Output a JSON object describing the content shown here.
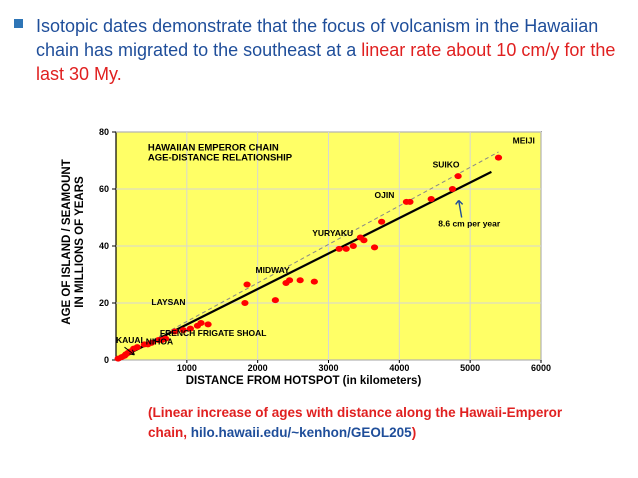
{
  "bullet": {
    "part1": "Isotopic dates demonstrate that the focus of volcanism in  the Hawaiian chain has migrated to the southeast at a ",
    "part2": "linear rate about 10 cm/y for the last 30 My."
  },
  "caption": {
    "part1": "(Linear increase of ages with distance along the Hawaii-Emperor chain, ",
    "part2": "hilo.hawaii.edu/~kenhon/GEOL205",
    "part3": ")"
  },
  "chart_data": {
    "type": "scatter",
    "title_lines": [
      "HAWAIIAN EMPEROR CHAIN",
      "AGE-DISTANCE RELATIONSHIP"
    ],
    "xlabel": "DISTANCE  FROM  HOTSPOT  (in kilometers)",
    "ylabel_lines": [
      "AGE OF ISLAND / SEAMOUNT",
      "IN MILLIONS OF YEARS"
    ],
    "xlim": [
      0,
      6000
    ],
    "ylim": [
      0,
      80
    ],
    "xticks": [
      1000,
      2000,
      3000,
      4000,
      5000,
      6000
    ],
    "yticks": [
      0,
      20,
      40,
      60,
      80
    ],
    "colors": {
      "background": "#ffff66",
      "points": "#ff0000",
      "fit_line": "#000000",
      "rate_label": "#1f4e9a"
    },
    "points": [
      [
        30,
        0.5
      ],
      [
        80,
        1
      ],
      [
        120,
        1.5
      ],
      [
        140,
        2
      ],
      [
        170,
        2.5
      ],
      [
        200,
        3
      ],
      [
        250,
        4
      ],
      [
        300,
        4.5
      ],
      [
        400,
        5.5
      ],
      [
        450,
        5.5
      ],
      [
        500,
        6
      ],
      [
        600,
        7
      ],
      [
        650,
        7
      ],
      [
        700,
        7.5
      ],
      [
        830,
        10
      ],
      [
        950,
        10.5
      ],
      [
        1050,
        11
      ],
      [
        1150,
        12
      ],
      [
        1200,
        13
      ],
      [
        1300,
        12.5
      ],
      [
        1820,
        20
      ],
      [
        1850,
        26.5
      ],
      [
        2250,
        21
      ],
      [
        2400,
        27
      ],
      [
        2450,
        28
      ],
      [
        2600,
        28
      ],
      [
        2800,
        27.5
      ],
      [
        3150,
        39
      ],
      [
        3250,
        39
      ],
      [
        3350,
        40
      ],
      [
        3450,
        43
      ],
      [
        3500,
        42
      ],
      [
        3650,
        39.5
      ],
      [
        3750,
        48.5
      ],
      [
        4100,
        55.5
      ],
      [
        4150,
        55.5
      ],
      [
        4450,
        56.5
      ],
      [
        4750,
        60
      ],
      [
        4830,
        64.5
      ],
      [
        5400,
        71
      ]
    ],
    "fit_line": [
      [
        0,
        0
      ],
      [
        5300,
        66
      ]
    ],
    "trend_line": [
      [
        0,
        0
      ],
      [
        5400,
        73
      ]
    ],
    "point_labels": [
      {
        "text": "KAUAI",
        "x": 0,
        "y": 6
      },
      {
        "text": "NIHOA",
        "x": 420,
        "y": 5.5
      },
      {
        "text": "FRENCH FRIGATE SHOAL",
        "x": 620,
        "y": 8.5
      },
      {
        "text": "LAYSAN",
        "x": 500,
        "y": 19.3
      },
      {
        "text": "MIDWAY",
        "x": 1970,
        "y": 30.5
      },
      {
        "text": "YURYAKU",
        "x": 2770,
        "y": 43.5
      },
      {
        "text": "OJIN",
        "x": 3650,
        "y": 56.8
      },
      {
        "text": "SUIKO",
        "x": 4470,
        "y": 67.5
      },
      {
        "text": "MEIJI",
        "x": 5600,
        "y": 76
      }
    ],
    "rate_annotation": {
      "text": "8.6 cm per year"
    }
  }
}
